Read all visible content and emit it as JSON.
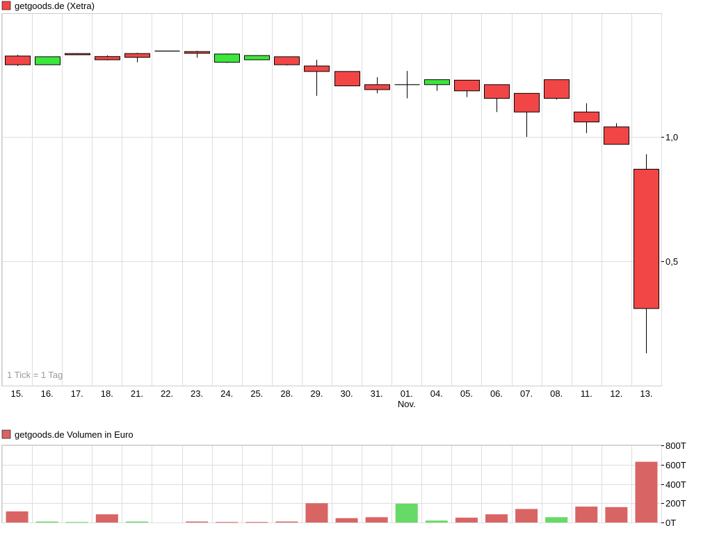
{
  "chart_data": [
    {
      "type": "candlestick",
      "title": "getgoods.de (Xetra)",
      "legend_color": "#f24646",
      "note": "1 Tick = 1 Tag",
      "x_labels": [
        "15.",
        "16.",
        "17.",
        "18.",
        "21.",
        "22.",
        "23.",
        "24.",
        "25.",
        "28.",
        "29.",
        "30.",
        "31.",
        "01.",
        "04.",
        "05.",
        "06.",
        "07.",
        "08.",
        "11.",
        "12.",
        "13."
      ],
      "month_label": {
        "text": "Nov.",
        "at": "01."
      },
      "y_ticks": [
        {
          "value": 0.5,
          "label": "0,5"
        },
        {
          "value": 1.0,
          "label": "1,0"
        }
      ],
      "ylim": [
        0.0,
        1.5
      ],
      "grid": true,
      "up_color": "#3ce63c",
      "down_color": "#f24646",
      "candles": [
        {
          "x": "15.",
          "open": 1.325,
          "high": 1.33,
          "low": 1.285,
          "close": 1.29
        },
        {
          "x": "16.",
          "open": 1.29,
          "high": 1.322,
          "low": 1.29,
          "close": 1.322
        },
        {
          "x": "17.",
          "open": 1.335,
          "high": 1.337,
          "low": 1.33,
          "close": 1.33
        },
        {
          "x": "18.",
          "open": 1.323,
          "high": 1.328,
          "low": 1.308,
          "close": 1.31
        },
        {
          "x": "21.",
          "open": 1.335,
          "high": 1.338,
          "low": 1.3,
          "close": 1.32
        },
        {
          "x": "22.",
          "open": 1.345,
          "high": 1.345,
          "low": 1.345,
          "close": 1.345
        },
        {
          "x": "23.",
          "open": 1.343,
          "high": 1.346,
          "low": 1.318,
          "close": 1.336
        },
        {
          "x": "24.",
          "open": 1.3,
          "high": 1.335,
          "low": 1.297,
          "close": 1.333
        },
        {
          "x": "25.",
          "open": 1.31,
          "high": 1.327,
          "low": 1.31,
          "close": 1.327
        },
        {
          "x": "28.",
          "open": 1.322,
          "high": 1.322,
          "low": 1.287,
          "close": 1.29
        },
        {
          "x": "29.",
          "open": 1.285,
          "high": 1.31,
          "low": 1.165,
          "close": 1.263
        },
        {
          "x": "30.",
          "open": 1.263,
          "high": 1.263,
          "low": 1.205,
          "close": 1.205
        },
        {
          "x": "31.",
          "open": 1.21,
          "high": 1.24,
          "low": 1.175,
          "close": 1.19
        },
        {
          "x": "01.",
          "open": 1.21,
          "high": 1.265,
          "low": 1.155,
          "close": 1.21
        },
        {
          "x": "04.",
          "open": 1.21,
          "high": 1.23,
          "low": 1.185,
          "close": 1.23
        },
        {
          "x": "05.",
          "open": 1.228,
          "high": 1.228,
          "low": 1.16,
          "close": 1.185
        },
        {
          "x": "06.",
          "open": 1.21,
          "high": 1.21,
          "low": 1.1,
          "close": 1.155
        },
        {
          "x": "07.",
          "open": 1.175,
          "high": 1.175,
          "low": 1.0,
          "close": 1.1
        },
        {
          "x": "08.",
          "open": 1.23,
          "high": 1.23,
          "low": 1.15,
          "close": 1.155
        },
        {
          "x": "11.",
          "open": 1.1,
          "high": 1.135,
          "low": 1.015,
          "close": 1.06
        },
        {
          "x": "12.",
          "open": 1.04,
          "high": 1.055,
          "low": 0.97,
          "close": 0.97
        },
        {
          "x": "13.",
          "open": 0.87,
          "high": 0.93,
          "low": 0.13,
          "close": 0.31
        }
      ]
    },
    {
      "type": "bar",
      "title": "getgoods.de Volumen in Euro",
      "legend_color": "#d96464",
      "categories": [
        "15.",
        "16.",
        "17.",
        "18.",
        "21.",
        "22.",
        "23.",
        "24.",
        "25.",
        "28.",
        "29.",
        "30.",
        "31.",
        "01.",
        "04.",
        "05.",
        "06.",
        "07.",
        "08.",
        "11.",
        "12.",
        "13."
      ],
      "values": [
        115,
        10,
        5,
        85,
        10,
        0,
        10,
        5,
        5,
        10,
        200,
        45,
        55,
        195,
        20,
        50,
        85,
        140,
        55,
        165,
        160,
        630
      ],
      "colors": [
        "down",
        "up",
        "up",
        "down",
        "up",
        "up",
        "down",
        "down",
        "down",
        "down",
        "down",
        "down",
        "down",
        "up",
        "up",
        "down",
        "down",
        "down",
        "up",
        "down",
        "down",
        "down"
      ],
      "up_color": "#66d966",
      "down_color": "#d96464",
      "ylim": [
        0,
        800
      ],
      "y_ticks": [
        {
          "value": 0,
          "label": "0T"
        },
        {
          "value": 200,
          "label": "200T"
        },
        {
          "value": 400,
          "label": "400T"
        },
        {
          "value": 600,
          "label": "600T"
        },
        {
          "value": 800,
          "label": "800T"
        }
      ],
      "grid": true
    }
  ]
}
